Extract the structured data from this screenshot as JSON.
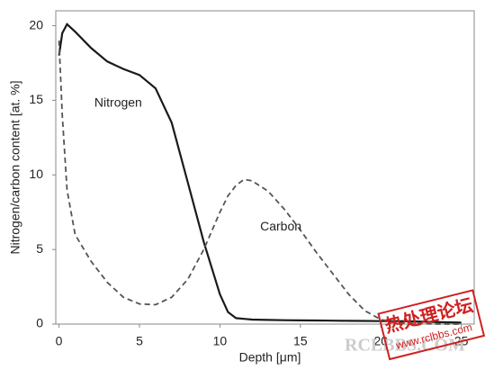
{
  "chart_data": {
    "type": "line",
    "xlabel": "Depth [μm]",
    "ylabel": "Nitrogen/carbon content [at. %]",
    "x": [
      0,
      0.2,
      0.5,
      1,
      2,
      3,
      4,
      5,
      6,
      7,
      8,
      9,
      10,
      10.5,
      11,
      11.5,
      12,
      13,
      14,
      15,
      16,
      17,
      18,
      19,
      20,
      21,
      22,
      23,
      24,
      25
    ],
    "series": [
      {
        "name": "Nitrogen",
        "color": "#1a1a1a",
        "dash": false,
        "values": [
          18,
          19.5,
          20.1,
          19.6,
          18.5,
          17.6,
          17.1,
          16.7,
          15.8,
          13.5,
          9.5,
          5.5,
          2,
          0.8,
          0.4,
          0.35,
          0.3,
          0.28,
          0.26,
          0.25,
          0.24,
          0.23,
          0.22,
          0.21,
          0.2,
          0.2,
          0.18,
          0.15,
          0.12,
          0.1
        ],
        "label_at": [
          2.2,
          14.8
        ]
      },
      {
        "name": "Carbon",
        "color": "#555555",
        "dash": true,
        "values": [
          19,
          14,
          9,
          6,
          4.2,
          2.8,
          1.8,
          1.35,
          1.3,
          1.8,
          3,
          5,
          7.5,
          8.6,
          9.3,
          9.7,
          9.6,
          8.9,
          7.7,
          6.3,
          4.8,
          3.4,
          2,
          0.9,
          0.3,
          0.1,
          0.05,
          0.02,
          0,
          0
        ],
        "label_at": [
          12.5,
          6.5
        ]
      }
    ],
    "xlim": [
      -0.2,
      25.8
    ],
    "xticks": [
      0,
      5,
      10,
      15,
      20,
      25
    ],
    "ylim": [
      0,
      21
    ],
    "yticks": [
      0,
      5,
      10,
      15,
      20
    ],
    "watermark": [
      "RCLBBS.COM",
      "热处理论坛",
      "www.rclbbs.com"
    ]
  }
}
